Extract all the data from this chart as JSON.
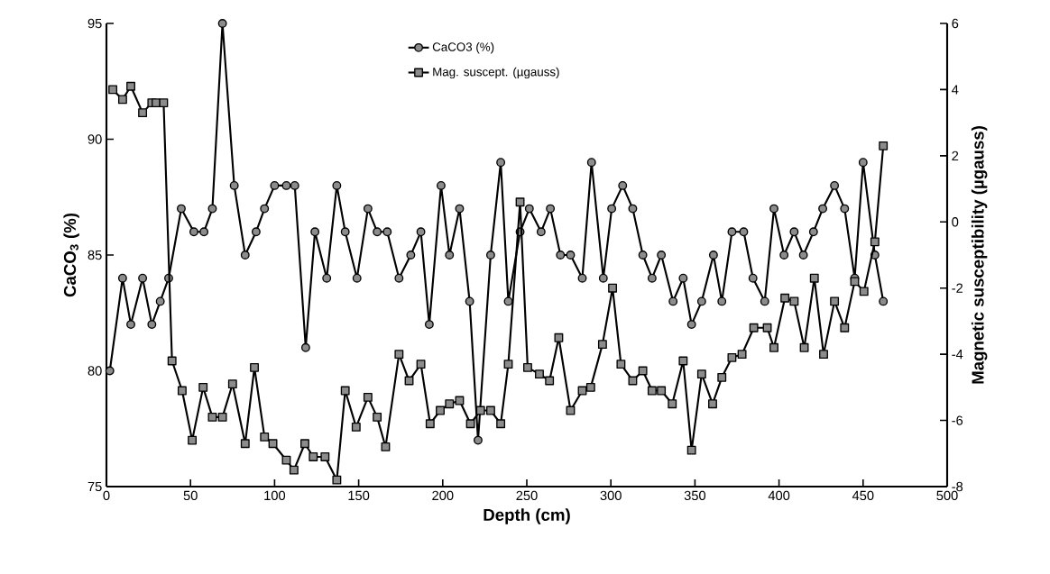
{
  "chart_data": {
    "type": "line",
    "xlabel": "Depth  (cm)",
    "ylabel": "CaCO$_{3}$ (%)",
    "y2label": "Magnetic susceptibility  (µgauss)",
    "xlim": [
      0,
      500
    ],
    "xticks": [
      0,
      50,
      100,
      150,
      200,
      250,
      300,
      350,
      400,
      450,
      500
    ],
    "ylim": [
      75,
      95
    ],
    "yticks": [
      75,
      80,
      85,
      90,
      95
    ],
    "y2lim": [
      -8,
      6
    ],
    "y2ticks": [
      -8,
      -6,
      -4,
      -2,
      0,
      2,
      4,
      6
    ],
    "legend": "top",
    "line_style": "solid",
    "grid": false,
    "series": [
      {
        "name": "CaCO3 (%)",
        "color": "#000000",
        "marker": "circle",
        "x": [
          2,
          9.6,
          14.5,
          21.5,
          27,
          32,
          37,
          44.5,
          52,
          58,
          63,
          69,
          76,
          82.5,
          89,
          94,
          100,
          107,
          112,
          118.5,
          124,
          131,
          137,
          142,
          149,
          155.5,
          161,
          167,
          174,
          181,
          187,
          192,
          199,
          204,
          210,
          216,
          221,
          228.5,
          234.5,
          239,
          246,
          251.5,
          258.5,
          264,
          270,
          276,
          283,
          288.5,
          295.5,
          300.5,
          307,
          313,
          319,
          324.5,
          330,
          337,
          343,
          348,
          354,
          361,
          366,
          372,
          379,
          384.5,
          391.5,
          397,
          403,
          409,
          414.5,
          420.5,
          426,
          433,
          439,
          445,
          450,
          457,
          462
        ],
        "values": [
          80,
          84,
          82,
          84,
          82,
          83,
          84,
          87,
          86,
          86,
          87,
          95,
          88,
          85,
          86,
          87,
          88,
          88,
          88,
          81,
          86,
          84,
          88,
          86,
          84,
          87,
          86,
          86,
          84,
          85,
          86,
          82,
          88,
          85,
          87,
          83,
          77,
          85,
          89,
          83,
          86,
          87,
          86,
          87,
          85,
          85,
          84,
          89,
          84,
          87,
          88,
          87,
          85,
          84,
          85,
          83,
          84,
          82,
          83,
          85,
          83,
          86,
          86,
          84,
          83,
          87,
          85,
          86,
          85,
          86,
          87,
          88,
          87,
          84,
          89,
          85,
          83
        ]
      },
      {
        "name": "Mag. suscept. (µgauss)",
        "color": "#000000",
        "marker": "square",
        "axis": "y2",
        "x": [
          3.8,
          9.6,
          14.5,
          21.5,
          27,
          29.5,
          34,
          39,
          45,
          51,
          57.5,
          63,
          69,
          75,
          82.5,
          88,
          94,
          99,
          107,
          111.5,
          118,
          123,
          130,
          137,
          142,
          148.5,
          155.5,
          161,
          166,
          174,
          180,
          187,
          192.5,
          198.5,
          204,
          210,
          216.5,
          222.5,
          228.5,
          234.5,
          239,
          246,
          250.5,
          257.5,
          263.5,
          269,
          276,
          283,
          288,
          295,
          301,
          306,
          313,
          319,
          324.5,
          330,
          336.5,
          343,
          348,
          354,
          360.5,
          366,
          372,
          378,
          385,
          393,
          397,
          403.5,
          409,
          415,
          421,
          426.5,
          433,
          439,
          445,
          450.5,
          457,
          462
        ],
        "values": [
          4.0,
          3.7,
          4.1,
          3.3,
          3.6,
          3.6,
          3.6,
          -4.2,
          -5.1,
          -6.6,
          -5.0,
          -5.9,
          -5.9,
          -4.9,
          -6.7,
          -4.4,
          -6.5,
          -6.7,
          -7.2,
          -7.5,
          -6.7,
          -7.1,
          -7.1,
          -7.8,
          -5.1,
          -6.2,
          -5.3,
          -5.9,
          -6.8,
          -4.0,
          -4.8,
          -4.3,
          -6.1,
          -5.7,
          -5.5,
          -5.4,
          -6.1,
          -5.7,
          -5.7,
          -6.1,
          -4.3,
          0.6,
          -4.4,
          -4.6,
          -4.8,
          -3.5,
          -5.7,
          -5.1,
          -5.0,
          -3.7,
          -2.0,
          -4.3,
          -4.8,
          -4.5,
          -5.1,
          -5.1,
          -5.5,
          -4.2,
          -6.9,
          -4.6,
          -5.5,
          -4.7,
          -4.1,
          -4.0,
          -3.2,
          -3.2,
          -3.8,
          -2.3,
          -2.4,
          -3.8,
          -1.7,
          -4.0,
          -2.4,
          -3.2,
          -1.8,
          -2.1,
          -0.6,
          2.3
        ]
      }
    ]
  }
}
